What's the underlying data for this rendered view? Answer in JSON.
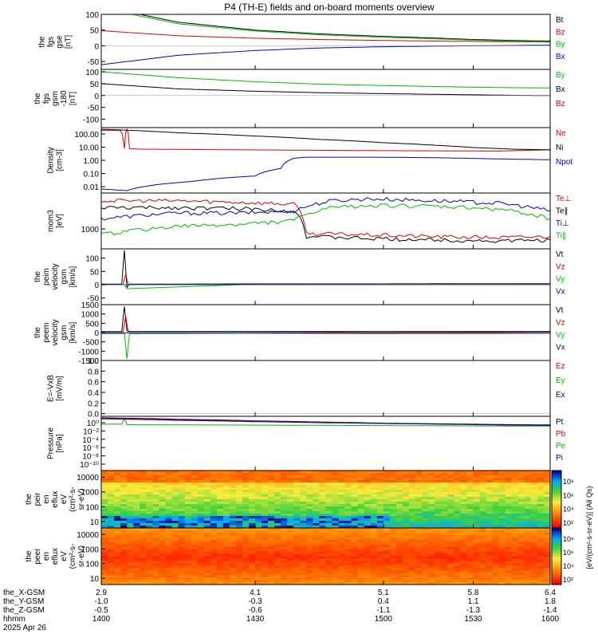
{
  "chart_data": {
    "type": "line",
    "title": "P4 (TH-E) fields and on-board moments overview",
    "panels": [
      {
        "ylabel": [
          "the",
          "fgs",
          "gse",
          "[nT]"
        ],
        "yticks": [
          "100",
          "50",
          "0",
          "-50"
        ],
        "ylim": [
          -75,
          100
        ],
        "legend": [
          {
            "name": "Bt",
            "color": "#000000"
          },
          {
            "name": "Bz",
            "color": "#dd0000"
          },
          {
            "name": "By",
            "color": "#00bb00"
          },
          {
            "name": "Bx",
            "color": "#0000cc"
          }
        ],
        "series": [
          {
            "name": "Bt",
            "color": "#000000",
            "x": [
              2.9,
              3.5,
              4.1,
              4.6,
              5.1,
              5.5,
              5.8,
              6.1,
              6.4
            ],
            "values": [
              125,
              75,
              50,
              38,
              30,
              25,
              20,
              17,
              15
            ]
          },
          {
            "name": "Bz",
            "color": "#dd0000",
            "x": [
              2.9,
              3.5,
              4.1,
              4.6,
              5.1,
              5.5,
              5.8,
              6.1,
              6.4
            ],
            "values": [
              48,
              32,
              24,
              20,
              17,
              15,
              14,
              13,
              12
            ]
          },
          {
            "name": "By",
            "color": "#00bb00",
            "x": [
              2.9,
              3.5,
              4.1,
              4.6,
              5.1,
              5.5,
              5.8,
              6.1,
              6.4
            ],
            "values": [
              120,
              70,
              47,
              35,
              27,
              22,
              18,
              15,
              12
            ]
          },
          {
            "name": "Bx",
            "color": "#0000cc",
            "x": [
              2.9,
              3.5,
              4.1,
              4.6,
              5.1,
              5.5,
              5.8,
              6.1,
              6.4
            ],
            "values": [
              -60,
              -30,
              -15,
              -7,
              -3,
              -1,
              0,
              1,
              2
            ]
          }
        ]
      },
      {
        "ylabel": [
          "the",
          "fgs",
          "gsm",
          "-180",
          "[nT]"
        ],
        "yticks": [
          "100",
          "50",
          "0",
          "-50",
          "-100"
        ],
        "ylim": [
          -135,
          110
        ],
        "legend": [
          {
            "name": "By",
            "color": "#00bb00"
          },
          {
            "name": "Bx",
            "color": "#000000"
          },
          {
            "name": "Bz",
            "color": "#dd0000"
          }
        ],
        "series": [
          {
            "name": "By",
            "color": "#00bb00",
            "x": [
              2.9,
              3.5,
              4.1,
              4.6,
              5.1,
              5.5,
              5.8,
              6.1,
              6.4
            ],
            "values": [
              100,
              75,
              58,
              48,
              42,
              38,
              35,
              33,
              32
            ]
          },
          {
            "name": "Bx",
            "color": "#000000",
            "x": [
              2.9,
              3.5,
              4.1,
              4.6,
              5.1,
              5.5,
              5.8,
              6.1,
              6.4
            ],
            "values": [
              50,
              28,
              18,
              12,
              8,
              5,
              3,
              1,
              0
            ]
          },
          {
            "name": "Bz",
            "color": "#dd0000",
            "x": [
              2.9,
              4.0,
              5.2,
              6.4
            ],
            "values": [
              -180,
              -180,
              -180,
              -180
            ]
          }
        ]
      },
      {
        "ylabel": [
          "Density",
          "[cm-3]"
        ],
        "yticks": [
          "100.00",
          "10.00",
          "1.00",
          "0.10",
          "0.01"
        ],
        "ylim": [
          0.002,
          200
        ],
        "scale": "log",
        "legend": [
          {
            "name": "Ne",
            "color": "#dd0000"
          },
          {
            "name": "Ni",
            "color": "#000000"
          },
          {
            "name": "Npot",
            "color": "#0000cc"
          }
        ],
        "series": [
          {
            "name": "Ne",
            "color": "#dd0000",
            "x": [
              2.9,
              3.05,
              3.08,
              3.1,
              3.12,
              3.2,
              4.0,
              5.0,
              6.0,
              6.4
            ],
            "values": [
              120,
              120,
              5,
              150,
              5,
              4.5,
              4,
              3.5,
              3.2,
              4
            ]
          },
          {
            "name": "Ni",
            "color": "#000000",
            "x": [
              2.9,
              3.5,
              4.1,
              4.6,
              5.1,
              5.5,
              5.8,
              6.1,
              6.4
            ],
            "values": [
              150,
              80,
              45,
              25,
              14,
              9,
              6,
              4.5,
              4
            ]
          },
          {
            "name": "Npot",
            "color": "#0000cc",
            "x": [
              2.9,
              3.1,
              3.6,
              4.1,
              4.3,
              4.4,
              4.5,
              5.0,
              5.5,
              6.0,
              6.4
            ],
            "values": [
              0.004,
              0.003,
              0.015,
              0.04,
              0.15,
              0.9,
              1.1,
              1.1,
              1.0,
              0.8,
              0.7
            ]
          }
        ]
      },
      {
        "ylabel": [
          "mom3",
          "[eV]"
        ],
        "yticks": [
          "1000"
        ],
        "ylim": [
          200,
          30000
        ],
        "scale": "log",
        "legend": [
          {
            "name": "Te⊥",
            "color": "#dd0000"
          },
          {
            "name": "Te∥",
            "color": "#000000"
          },
          {
            "name": "Ti⊥",
            "color": "#0000cc"
          },
          {
            "name": "Ti∥",
            "color": "#00bb00"
          }
        ],
        "series": [
          {
            "name": "Te⊥",
            "color": "#dd0000",
            "x": [
              2.9,
              3.5,
              4.0,
              4.4,
              4.5,
              5.0,
              5.5,
              6.0,
              6.4
            ],
            "values": [
              15000,
              15000,
              13000,
              11000,
              800,
              700,
              600,
              550,
              600
            ]
          },
          {
            "name": "Te∥",
            "color": "#000000",
            "x": [
              2.9,
              3.5,
              4.0,
              4.4,
              4.5,
              5.0,
              5.5,
              6.0,
              6.4
            ],
            "values": [
              8000,
              8000,
              7500,
              6000,
              600,
              500,
              450,
              400,
              450
            ]
          },
          {
            "name": "Ti⊥",
            "color": "#0000cc",
            "x": [
              2.9,
              3.5,
              4.0,
              4.4,
              4.7,
              5.0,
              5.5,
              6.0,
              6.4
            ],
            "values": [
              3000,
              5000,
              5000,
              6000,
              15000,
              18000,
              15000,
              12000,
              6000
            ]
          },
          {
            "name": "Ti∥",
            "color": "#00bb00",
            "x": [
              2.9,
              3.5,
              4.0,
              4.4,
              4.7,
              5.0,
              5.5,
              6.0,
              6.4
            ],
            "values": [
              700,
              1500,
              1800,
              2500,
              8000,
              10000,
              9000,
              7000,
              3000
            ]
          }
        ]
      },
      {
        "ylabel": [
          "the",
          "peim",
          "velocity",
          "gsm",
          "[km/s]"
        ],
        "yticks": [
          "100",
          "50",
          "0",
          "-50"
        ],
        "ylim": [
          -75,
          135
        ],
        "legend": [
          {
            "name": "Vt",
            "color": "#000000"
          },
          {
            "name": "Vz",
            "color": "#dd0000"
          },
          {
            "name": "Vy",
            "color": "#00bb00"
          },
          {
            "name": "Vx",
            "color": "#0000cc"
          }
        ],
        "series": [
          {
            "name": "Vt",
            "color": "#000000",
            "x": [
              2.9,
              3.06,
              3.08,
              3.1,
              3.12,
              4.0,
              5.0,
              6.0,
              6.4
            ],
            "values": [
              2,
              2,
              130,
              -10,
              2,
              3,
              3,
              4,
              4
            ]
          },
          {
            "name": "Vz",
            "color": "#dd0000",
            "x": [
              2.9,
              3.07,
              3.09,
              3.11,
              4.0,
              5.0,
              6.0,
              6.4
            ],
            "values": [
              0,
              0,
              40,
              0,
              0,
              1,
              2,
              1
            ]
          },
          {
            "name": "Vy",
            "color": "#00bb00",
            "x": [
              2.9,
              3.08,
              3.1,
              4.0,
              5.0,
              6.0,
              6.4
            ],
            "values": [
              0,
              0,
              -15,
              0,
              0,
              1,
              0
            ]
          },
          {
            "name": "Vx",
            "color": "#0000cc",
            "x": [
              2.9,
              4.0,
              5.0,
              6.0,
              6.4
            ],
            "values": [
              0,
              0,
              0,
              0,
              0
            ]
          }
        ]
      },
      {
        "ylabel": [
          "the",
          "peem",
          "velocity",
          "gsm",
          "[km/s]"
        ],
        "yticks": [
          "1500",
          "1000",
          "500",
          "0",
          "-500",
          "-1000",
          "-1500"
        ],
        "ylim": [
          -1500,
          1500
        ],
        "legend": [
          {
            "name": "Vt",
            "color": "#000000"
          },
          {
            "name": "Vz",
            "color": "#dd0000"
          },
          {
            "name": "Vy",
            "color": "#00bb00"
          },
          {
            "name": "Vx",
            "color": "#0000cc"
          }
        ],
        "series": [
          {
            "name": "Vt",
            "color": "#000000",
            "x": [
              2.9,
              3.06,
              3.08,
              3.1,
              3.12,
              4.0,
              5.0,
              6.0,
              6.4
            ],
            "values": [
              50,
              50,
              1400,
              100,
              60,
              60,
              60,
              60,
              60
            ]
          },
          {
            "name": "Vz",
            "color": "#dd0000",
            "x": [
              2.9,
              3.07,
              3.09,
              3.11,
              4.0,
              5.0,
              6.0,
              6.4
            ],
            "values": [
              0,
              0,
              900,
              0,
              0,
              30,
              20,
              10
            ]
          },
          {
            "name": "Vy",
            "color": "#00bb00",
            "x": [
              2.9,
              3.08,
              3.1,
              3.12,
              4.0,
              5.0,
              6.0,
              6.4
            ],
            "values": [
              -50,
              -50,
              -1400,
              -60,
              -40,
              -60,
              -50,
              -40
            ]
          },
          {
            "name": "Vx",
            "color": "#0000cc",
            "x": [
              2.9,
              4.0,
              5.0,
              6.0,
              6.4
            ],
            "values": [
              -20,
              -20,
              -20,
              -20,
              -20
            ]
          }
        ]
      },
      {
        "ylabel": [
          "E=-VxB",
          "[mV/m]"
        ],
        "yticks": [
          "1.0",
          "0.8",
          "0.6",
          "0.4",
          "0.2",
          "0.0"
        ],
        "ylim": [
          -0.05,
          1.0
        ],
        "legend": [
          {
            "name": "Ez",
            "color": "#dd0000"
          },
          {
            "name": "Ey",
            "color": "#00bb00"
          },
          {
            "name": "Ex",
            "color": "#0000cc"
          }
        ],
        "series": []
      },
      {
        "ylabel": [
          "Pressure",
          "[nPa]"
        ],
        "yticks": [
          "10⁰",
          "10⁻²",
          "10⁻⁴",
          "10⁻⁶",
          "10⁻⁸",
          "10⁻¹⁰"
        ],
        "ylim": [
          1e-10,
          10
        ],
        "scale": "log",
        "legend": [
          {
            "name": "Pt",
            "color": "#000000"
          },
          {
            "name": "Pb",
            "color": "#dd0000"
          },
          {
            "name": "Pe",
            "color": "#00bb00"
          },
          {
            "name": "Pi",
            "color": "#0000cc"
          }
        ],
        "series": [
          {
            "name": "Pt",
            "color": "#000000",
            "x": [
              2.9,
              3.5,
              4.1,
              4.6,
              5.1,
              5.5,
              5.8,
              6.1,
              6.4
            ],
            "values": [
              5,
              2.5,
              1.2,
              0.7,
              0.4,
              0.3,
              0.25,
              0.2,
              0.18
            ]
          },
          {
            "name": "Pb",
            "color": "#dd0000",
            "x": [
              2.9,
              3.5,
              4.1,
              4.6,
              5.1,
              5.5,
              5.8,
              6.1,
              6.4
            ],
            "values": [
              4,
              2,
              1,
              0.6,
              0.35,
              0.25,
              0.2,
              0.15,
              0.12
            ]
          },
          {
            "name": "Pe",
            "color": "#00bb00",
            "x": [
              2.9,
              3.06,
              3.08,
              3.1,
              3.5,
              4.5,
              5.5,
              6.4
            ],
            "values": [
              0.25,
              0.25,
              2,
              0.2,
              0.18,
              0.15,
              0.12,
              0.1
            ]
          },
          {
            "name": "Pi",
            "color": "#0000cc",
            "x": [
              2.9,
              3.5,
              4.1,
              4.6,
              5.1,
              5.5,
              5.8,
              6.1,
              6.4
            ],
            "values": [
              3,
              1.5,
              0.8,
              0.5,
              0.35,
              0.28,
              0.22,
              0.18,
              0.15
            ]
          }
        ]
      },
      {
        "type": "heatmap",
        "ylabel": [
          "the",
          "peir",
          "en",
          "eflux",
          "eV",
          "(cm²-s-",
          "sr-eV)"
        ],
        "yticks": [
          "10000",
          "1000",
          "100",
          "10"
        ],
        "ylim": [
          6,
          30000
        ],
        "scale": "log",
        "colorbar_ticks": [
          "10⁸",
          "10⁶",
          "10⁴",
          "10²"
        ]
      },
      {
        "type": "heatmap",
        "ylabel": [
          "the",
          "peer",
          "en",
          "eflux",
          "eV",
          "(cm²-s-",
          "sr-eV)"
        ],
        "yticks": [
          "10000",
          "1000",
          "100",
          "10"
        ],
        "ylim": [
          6,
          30000
        ],
        "scale": "log",
        "colorbar_ticks": [
          "10⁸",
          "10⁶",
          "10⁴",
          "10²"
        ]
      }
    ],
    "colorbar_label": "[eV/(cm²-s-sr-eV)] (All Qs)",
    "x_axis": {
      "rows": [
        {
          "label": "the_X-GSM",
          "values": [
            "2.9",
            "4.1",
            "5.1",
            "5.8",
            "6.4"
          ]
        },
        {
          "label": "the_Y-GSM",
          "values": [
            "-1.0",
            "-0.3",
            "0.4",
            "1.1",
            "1.8"
          ]
        },
        {
          "label": "the_Z-GSM",
          "values": [
            "-0.5",
            "-0.6",
            "-1.1",
            "-1.3",
            "-1.4"
          ]
        },
        {
          "label": "hhmm",
          "values": [
            "1400",
            "1430",
            "1500",
            "1530",
            "1600"
          ]
        }
      ],
      "date": "2025 Apr 26"
    }
  }
}
